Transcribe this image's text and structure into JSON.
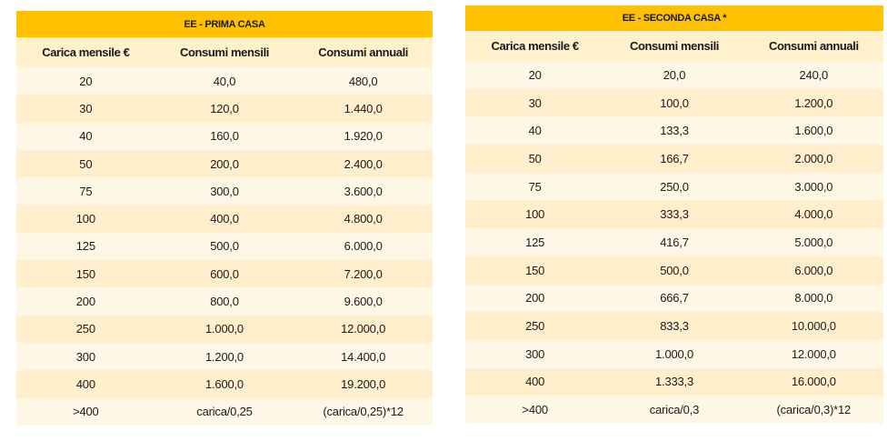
{
  "tables": [
    {
      "title": "EE - PRIMA CASA",
      "headers": [
        "Carica mensile €",
        "Consumi mensili",
        "Consumi annuali"
      ],
      "rows": [
        [
          "20",
          "40,0",
          "480,0"
        ],
        [
          "30",
          "120,0",
          "1.440,0"
        ],
        [
          "40",
          "160,0",
          "1.920,0"
        ],
        [
          "50",
          "200,0",
          "2.400,0"
        ],
        [
          "75",
          "300,0",
          "3.600,0"
        ],
        [
          "100",
          "400,0",
          "4.800,0"
        ],
        [
          "125",
          "500,0",
          "6.000,0"
        ],
        [
          "150",
          "600,0",
          "7.200,0"
        ],
        [
          "200",
          "800,0",
          "9.600,0"
        ],
        [
          "250",
          "1.000,0",
          "12.000,0"
        ],
        [
          "300",
          "1.200,0",
          "14.400,0"
        ],
        [
          "400",
          "1.600,0",
          "19.200,0"
        ],
        [
          ">400",
          "carica/0,25",
          "(carica/0,25)*12"
        ]
      ]
    },
    {
      "title": "EE - SECONDA CASA *",
      "headers": [
        "Carica mensile €",
        "Consumi mensili",
        "Consumi annuali"
      ],
      "rows": [
        [
          "20",
          "20,0",
          "240,0"
        ],
        [
          "30",
          "100,0",
          "1.200,0"
        ],
        [
          "40",
          "133,3",
          "1.600,0"
        ],
        [
          "50",
          "166,7",
          "2.000,0"
        ],
        [
          "75",
          "250,0",
          "3.000,0"
        ],
        [
          "100",
          "333,3",
          "4.000,0"
        ],
        [
          "125",
          "416,7",
          "5.000,0"
        ],
        [
          "150",
          "500,0",
          "6.000,0"
        ],
        [
          "200",
          "666,7",
          "8.000,0"
        ],
        [
          "250",
          "833,3",
          "10.000,0"
        ],
        [
          "300",
          "1.000,0",
          "12.000,0"
        ],
        [
          "400",
          "1.333,3",
          "16.000,0"
        ],
        [
          ">400",
          "carica/0,3",
          "(carica/0,3)*12"
        ]
      ]
    }
  ],
  "colors": {
    "title_bg": "#ffc000",
    "header_bg": "#fff1cc",
    "row_light": "#fff7e6",
    "row_dark": "#ffefcc"
  }
}
